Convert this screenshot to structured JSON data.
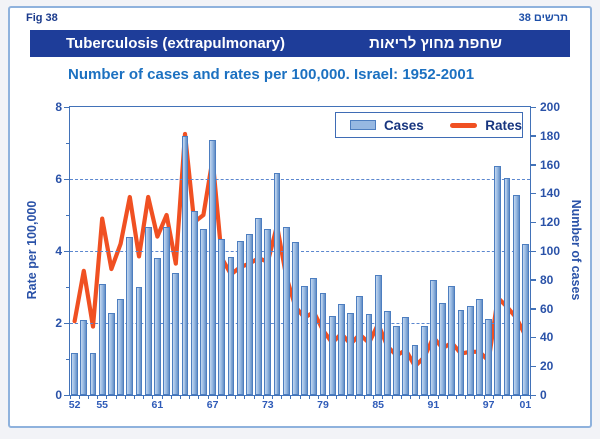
{
  "page": {
    "fig_label_left": "Fig  38",
    "fig_label_right": "תרשים 38",
    "title_en": "Tuberculosis (extrapulmonary)",
    "title_he": "שחפת מחוץ לריאות",
    "subtitle": "Number of cases and rates per 100,000. Israel: 1952-2001"
  },
  "legend": {
    "cases_label": "Cases",
    "rates_label": "Rates"
  },
  "axes": {
    "left_title": "Rate per 100,000",
    "right_title": "Number of cases",
    "left_ticks": [
      0,
      2,
      4,
      6,
      8
    ],
    "left_minor_ticks": [
      1,
      3,
      5,
      7
    ],
    "right_ticks": [
      0,
      20,
      40,
      60,
      80,
      100,
      120,
      140,
      160,
      180,
      200
    ],
    "x_tick_labels": [
      "52",
      "55",
      "61",
      "67",
      "73",
      "79",
      "85",
      "91",
      "97",
      "01"
    ],
    "x_label_years": [
      1952,
      1955,
      1961,
      1967,
      1973,
      1979,
      1985,
      1991,
      1997,
      2001
    ]
  },
  "colors": {
    "title_bar": "#1e3d99",
    "subtitle_text": "#1c71c1",
    "axis_text": "#2a52a8",
    "bar_fill": "#96b8e2",
    "bar_border": "#4d7ec0",
    "rates_line": "#f05022",
    "gridline": "#5b87cf",
    "frame_border": "#8fb2dd"
  },
  "chart_data": {
    "type": "bar",
    "title": "Number of cases and rates per 100,000. Israel: 1952-2001",
    "categories": [
      1952,
      1953,
      1954,
      1955,
      1956,
      1957,
      1958,
      1959,
      1960,
      1961,
      1962,
      1963,
      1964,
      1965,
      1966,
      1967,
      1968,
      1969,
      1970,
      1971,
      1972,
      1973,
      1974,
      1975,
      1976,
      1977,
      1978,
      1979,
      1980,
      1981,
      1982,
      1983,
      1984,
      1985,
      1986,
      1987,
      1988,
      1989,
      1990,
      1991,
      1992,
      1993,
      1994,
      1995,
      1996,
      1997,
      1998,
      1999,
      2000,
      2001
    ],
    "series": [
      {
        "name": "Cases",
        "type": "bar",
        "axis": "right",
        "ylabel": "Number of cases",
        "ylim": [
          0,
          200
        ],
        "values": [
          29,
          52,
          29,
          77,
          57,
          67,
          110,
          75,
          117,
          95,
          117,
          85,
          180,
          128,
          115,
          177,
          108,
          96,
          107,
          112,
          123,
          115,
          154,
          117,
          106,
          76,
          81,
          71,
          55,
          63,
          57,
          69,
          56,
          83,
          58,
          48,
          54,
          35,
          48,
          80,
          64,
          76,
          59,
          62,
          67,
          53,
          159,
          151,
          139,
          105
        ]
      },
      {
        "name": "Rates",
        "type": "line",
        "axis": "left",
        "ylabel": "Rate per 100,000",
        "ylim": [
          0,
          8
        ],
        "values": [
          2.05,
          3.45,
          1.9,
          4.9,
          3.5,
          4.2,
          5.5,
          3.85,
          5.5,
          4.4,
          5.0,
          3.65,
          7.25,
          4.8,
          5.0,
          6.55,
          3.8,
          3.35,
          3.55,
          3.65,
          3.8,
          3.7,
          4.7,
          3.3,
          2.45,
          2.15,
          2.3,
          1.8,
          1.45,
          1.7,
          1.42,
          1.68,
          1.45,
          1.97,
          1.35,
          1.1,
          1.25,
          0.8,
          1.05,
          1.6,
          1.3,
          1.45,
          1.15,
          1.2,
          1.2,
          0.95,
          2.7,
          2.45,
          2.15,
          1.65
        ]
      }
    ],
    "grid": "horizontal dashed at left-axis values 2, 4, 6",
    "legend_position": "top-right inside plot"
  }
}
